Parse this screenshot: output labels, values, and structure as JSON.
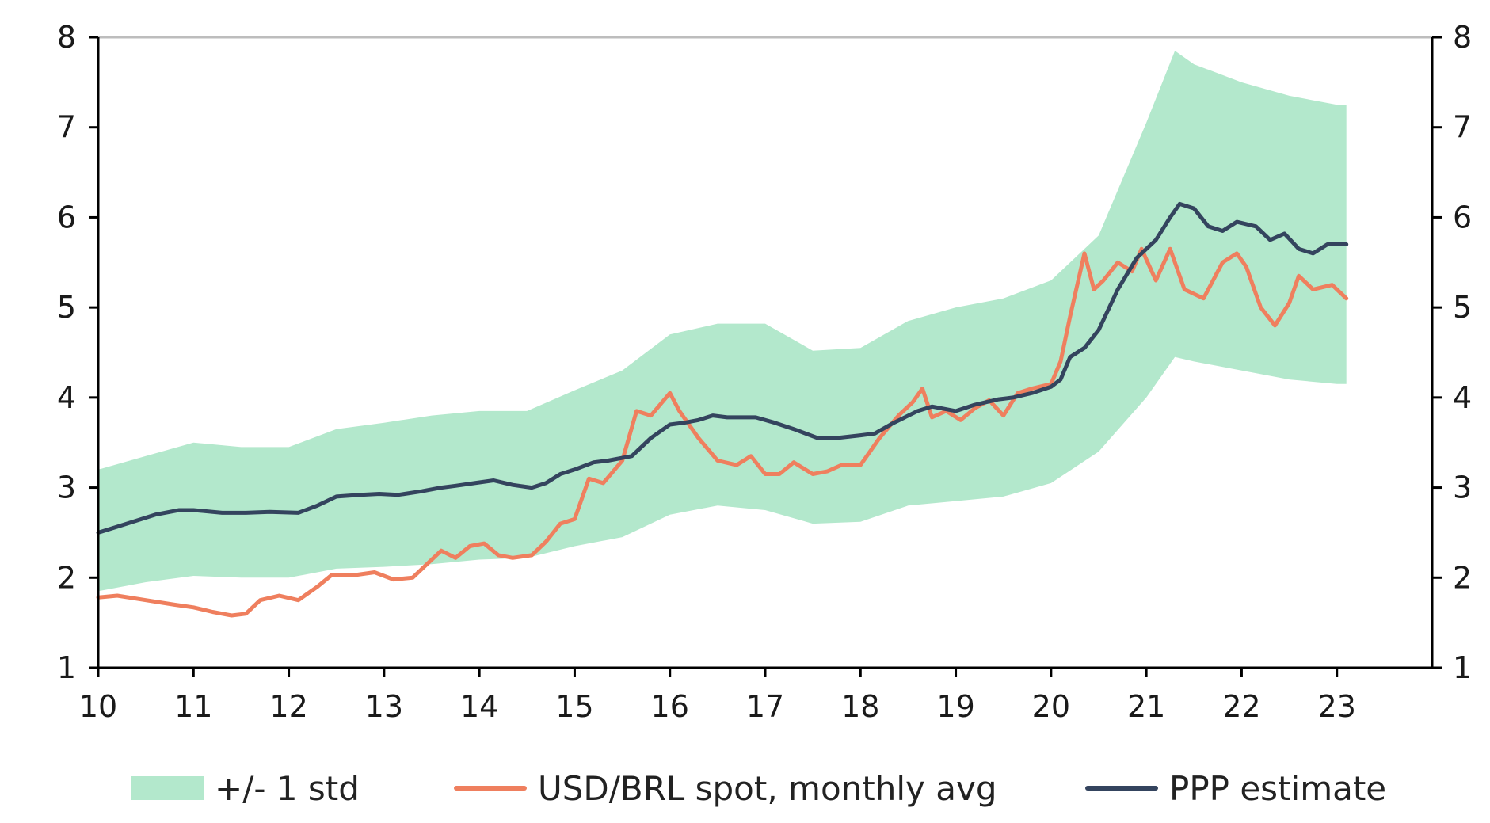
{
  "chart_data": {
    "type": "line",
    "title": "",
    "xlabel": "",
    "ylabel": "",
    "x_ticks": [
      "10",
      "11",
      "12",
      "13",
      "14",
      "15",
      "16",
      "17",
      "18",
      "19",
      "20",
      "21",
      "22",
      "23"
    ],
    "y_ticks": [
      "1",
      "2",
      "3",
      "4",
      "5",
      "6",
      "7",
      "8"
    ],
    "ylim": [
      1,
      8
    ],
    "xlim": [
      2010.0,
      2024.0
    ],
    "right_axis": true,
    "grid": false,
    "legend_position": "bottom",
    "colors": {
      "band": "#b3e8cc",
      "spot": "#ef7f5e",
      "ppp": "#34445e",
      "axis": "#000000",
      "top_line": "#bdbdbd"
    },
    "series": [
      {
        "name": "+/- 1 std",
        "kind": "band",
        "x": [
          2010.0,
          2010.5,
          2011.0,
          2011.5,
          2012.0,
          2012.5,
          2013.0,
          2013.5,
          2014.0,
          2014.5,
          2015.0,
          2015.5,
          2016.0,
          2016.5,
          2017.0,
          2017.5,
          2018.0,
          2018.5,
          2019.0,
          2019.5,
          2020.0,
          2020.5,
          2021.0,
          2021.3,
          2021.5,
          2022.0,
          2022.5,
          2023.0,
          2023.1
        ],
        "lower": [
          1.85,
          1.95,
          2.02,
          2.0,
          2.0,
          2.1,
          2.12,
          2.15,
          2.2,
          2.22,
          2.35,
          2.45,
          2.7,
          2.8,
          2.75,
          2.6,
          2.62,
          2.8,
          2.85,
          2.9,
          3.05,
          3.4,
          4.0,
          4.45,
          4.4,
          4.3,
          4.2,
          4.15,
          4.15
        ],
        "upper": [
          3.2,
          3.35,
          3.5,
          3.45,
          3.45,
          3.65,
          3.72,
          3.8,
          3.85,
          3.85,
          4.08,
          4.3,
          4.7,
          4.82,
          4.82,
          4.52,
          4.55,
          4.85,
          5.0,
          5.1,
          5.3,
          5.8,
          7.05,
          7.85,
          7.7,
          7.5,
          7.35,
          7.25,
          7.25
        ]
      },
      {
        "name": "USD/BRL spot, monthly avg",
        "kind": "line",
        "x": [
          2010.0,
          2010.2,
          2010.5,
          2010.8,
          2011.0,
          2011.2,
          2011.4,
          2011.55,
          2011.7,
          2011.9,
          2012.1,
          2012.3,
          2012.45,
          2012.7,
          2012.9,
          2013.1,
          2013.3,
          2013.45,
          2013.6,
          2013.75,
          2013.9,
          2014.05,
          2014.2,
          2014.35,
          2014.55,
          2014.7,
          2014.85,
          2015.0,
          2015.15,
          2015.3,
          2015.5,
          2015.65,
          2015.8,
          2016.0,
          2016.1,
          2016.3,
          2016.5,
          2016.7,
          2016.85,
          2017.0,
          2017.15,
          2017.3,
          2017.5,
          2017.65,
          2017.8,
          2018.0,
          2018.2,
          2018.4,
          2018.55,
          2018.65,
          2018.75,
          2018.9,
          2019.05,
          2019.2,
          2019.35,
          2019.5,
          2019.65,
          2019.8,
          2020.0,
          2020.1,
          2020.2,
          2020.35,
          2020.45,
          2020.55,
          2020.7,
          2020.85,
          2020.95,
          2021.1,
          2021.25,
          2021.4,
          2021.6,
          2021.8,
          2021.95,
          2022.05,
          2022.2,
          2022.35,
          2022.5,
          2022.6,
          2022.75,
          2022.95,
          2023.1
        ],
        "values": [
          1.78,
          1.8,
          1.75,
          1.7,
          1.67,
          1.62,
          1.58,
          1.6,
          1.75,
          1.8,
          1.75,
          1.9,
          2.03,
          2.03,
          2.06,
          1.98,
          2.0,
          2.15,
          2.3,
          2.22,
          2.35,
          2.38,
          2.25,
          2.22,
          2.25,
          2.4,
          2.6,
          2.65,
          3.1,
          3.05,
          3.3,
          3.85,
          3.8,
          4.05,
          3.85,
          3.55,
          3.3,
          3.25,
          3.35,
          3.15,
          3.15,
          3.28,
          3.15,
          3.18,
          3.25,
          3.25,
          3.55,
          3.8,
          3.95,
          4.1,
          3.78,
          3.85,
          3.75,
          3.88,
          3.97,
          3.8,
          4.05,
          4.1,
          4.15,
          4.4,
          4.9,
          5.6,
          5.2,
          5.3,
          5.5,
          5.4,
          5.65,
          5.3,
          5.65,
          5.2,
          5.1,
          5.5,
          5.6,
          5.45,
          5.0,
          4.8,
          5.05,
          5.35,
          5.2,
          5.25,
          5.1
        ]
      },
      {
        "name": "PPP estimate",
        "kind": "line",
        "x": [
          2010.0,
          2010.3,
          2010.6,
          2010.85,
          2011.0,
          2011.3,
          2011.55,
          2011.8,
          2012.1,
          2012.3,
          2012.5,
          2012.75,
          2012.95,
          2013.15,
          2013.4,
          2013.6,
          2013.75,
          2013.95,
          2014.15,
          2014.35,
          2014.55,
          2014.7,
          2014.85,
          2015.0,
          2015.2,
          2015.35,
          2015.6,
          2015.8,
          2016.0,
          2016.15,
          2016.3,
          2016.45,
          2016.6,
          2016.75,
          2016.9,
          2017.1,
          2017.3,
          2017.55,
          2017.75,
          2018.0,
          2018.15,
          2018.35,
          2018.6,
          2018.75,
          2019.0,
          2019.2,
          2019.45,
          2019.6,
          2019.8,
          2020.0,
          2020.1,
          2020.2,
          2020.35,
          2020.5,
          2020.7,
          2020.9,
          2021.1,
          2021.25,
          2021.35,
          2021.5,
          2021.65,
          2021.8,
          2021.95,
          2022.15,
          2022.3,
          2022.45,
          2022.6,
          2022.75,
          2022.9,
          2023.0,
          2023.1
        ],
        "values": [
          2.5,
          2.6,
          2.7,
          2.75,
          2.75,
          2.72,
          2.72,
          2.73,
          2.72,
          2.8,
          2.9,
          2.92,
          2.93,
          2.92,
          2.96,
          3.0,
          3.02,
          3.05,
          3.08,
          3.03,
          3.0,
          3.05,
          3.15,
          3.2,
          3.28,
          3.3,
          3.35,
          3.55,
          3.7,
          3.72,
          3.75,
          3.8,
          3.78,
          3.78,
          3.78,
          3.72,
          3.65,
          3.55,
          3.55,
          3.58,
          3.6,
          3.72,
          3.85,
          3.9,
          3.85,
          3.92,
          3.98,
          4.0,
          4.05,
          4.12,
          4.2,
          4.45,
          4.55,
          4.75,
          5.2,
          5.55,
          5.75,
          6.0,
          6.15,
          6.1,
          5.9,
          5.85,
          5.95,
          5.9,
          5.75,
          5.82,
          5.65,
          5.6,
          5.7,
          5.7,
          5.7
        ]
      }
    ]
  }
}
